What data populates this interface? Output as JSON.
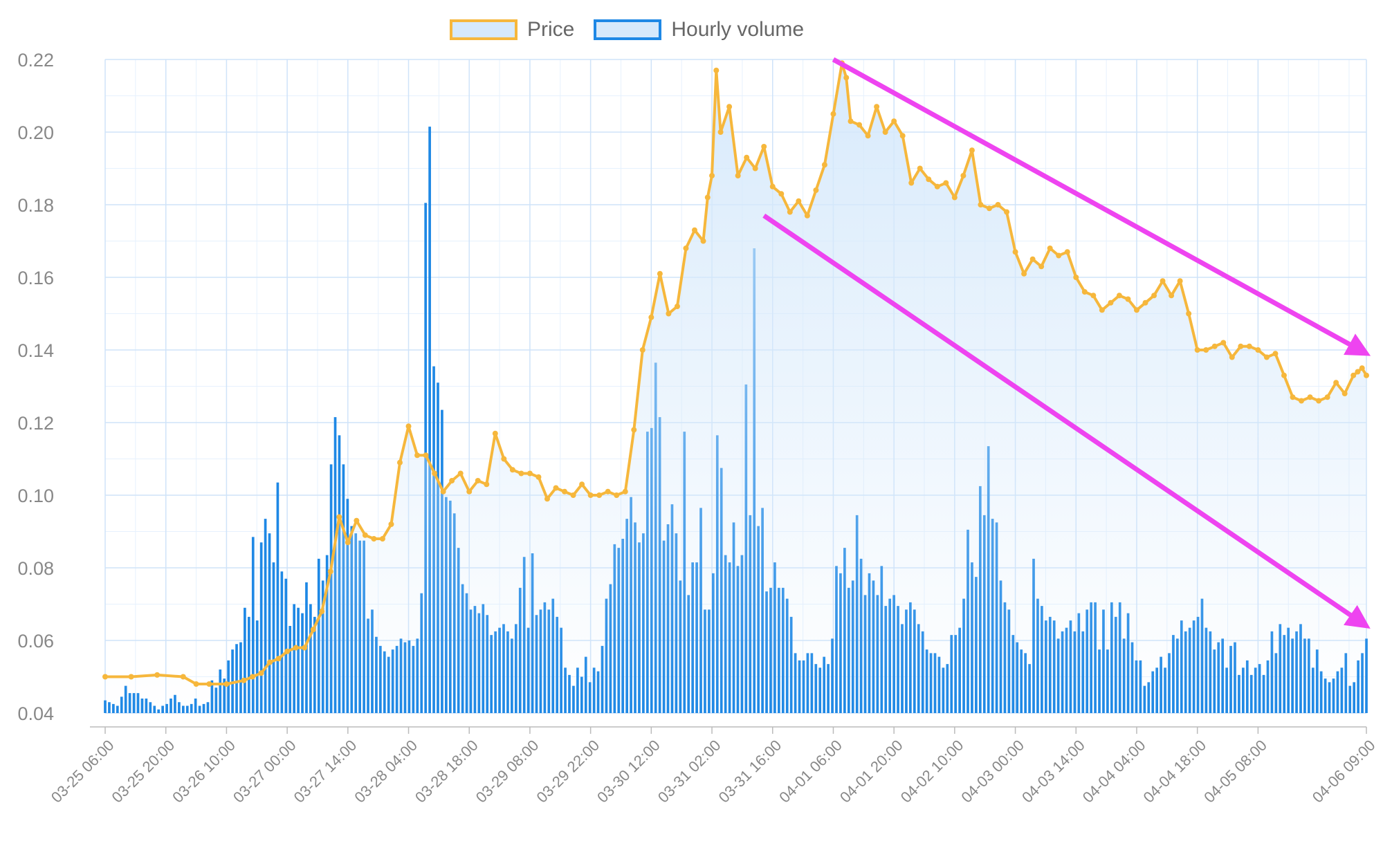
{
  "chart_data": {
    "type": "line",
    "legend": [
      {
        "label": "Price",
        "color": "#f6b73c",
        "fill": "#d6e9fb"
      },
      {
        "label": "Hourly volume",
        "color": "#1e88e5",
        "fill": "#d6e9fb"
      }
    ],
    "legend_position": "top",
    "grid": true,
    "ylim": [
      0.04,
      0.22
    ],
    "y_ticks": [
      "0.22",
      "0.20",
      "0.18",
      "0.16",
      "0.14",
      "0.12",
      "0.10",
      "0.08",
      "0.06",
      "0.04"
    ],
    "x_ticks": [
      "03-25 06:00",
      "03-25 20:00",
      "03-26 10:00",
      "03-27 00:00",
      "03-27 14:00",
      "03-28 04:00",
      "03-28 18:00",
      "03-29 08:00",
      "03-29 22:00",
      "03-30 12:00",
      "03-31 02:00",
      "03-31 16:00",
      "04-01 06:00",
      "04-01 20:00",
      "04-02 10:00",
      "04-03 00:00",
      "04-03 14:00",
      "04-04 04:00",
      "04-04 18:00",
      "04-05 08:00",
      "04-06 09:00"
    ],
    "series": [
      {
        "name": "Price",
        "type": "line",
        "color": "#f6b73c",
        "points": [
          [
            "03-25 06:00",
            0.05
          ],
          [
            "03-25 12:00",
            0.05
          ],
          [
            "03-25 18:00",
            0.0505
          ],
          [
            "03-26 00:00",
            0.05
          ],
          [
            "03-26 03:00",
            0.048
          ],
          [
            "03-26 06:00",
            0.048
          ],
          [
            "03-26 10:00",
            0.048
          ],
          [
            "03-26 14:00",
            0.049
          ],
          [
            "03-26 16:00",
            0.05
          ],
          [
            "03-26 18:00",
            0.051
          ],
          [
            "03-26 20:00",
            0.054
          ],
          [
            "03-26 22:00",
            0.055
          ],
          [
            "03-27 00:00",
            0.057
          ],
          [
            "03-27 02:00",
            0.058
          ],
          [
            "03-27 04:00",
            0.058
          ],
          [
            "03-27 06:00",
            0.063
          ],
          [
            "03-27 08:00",
            0.068
          ],
          [
            "03-27 10:00",
            0.079
          ],
          [
            "03-27 12:00",
            0.094
          ],
          [
            "03-27 14:00",
            0.087
          ],
          [
            "03-27 16:00",
            0.093
          ],
          [
            "03-27 18:00",
            0.089
          ],
          [
            "03-27 20:00",
            0.088
          ],
          [
            "03-27 22:00",
            0.088
          ],
          [
            "03-28 00:00",
            0.092
          ],
          [
            "03-28 02:00",
            0.109
          ],
          [
            "03-28 04:00",
            0.119
          ],
          [
            "03-28 06:00",
            0.111
          ],
          [
            "03-28 08:00",
            0.111
          ],
          [
            "03-28 10:00",
            0.106
          ],
          [
            "03-28 12:00",
            0.101
          ],
          [
            "03-28 14:00",
            0.104
          ],
          [
            "03-28 16:00",
            0.106
          ],
          [
            "03-28 18:00",
            0.101
          ],
          [
            "03-28 20:00",
            0.104
          ],
          [
            "03-28 22:00",
            0.103
          ],
          [
            "03-29 00:00",
            0.117
          ],
          [
            "03-29 02:00",
            0.11
          ],
          [
            "03-29 04:00",
            0.107
          ],
          [
            "03-29 06:00",
            0.106
          ],
          [
            "03-29 08:00",
            0.106
          ],
          [
            "03-29 10:00",
            0.105
          ],
          [
            "03-29 12:00",
            0.099
          ],
          [
            "03-29 14:00",
            0.102
          ],
          [
            "03-29 16:00",
            0.101
          ],
          [
            "03-29 18:00",
            0.1
          ],
          [
            "03-29 20:00",
            0.103
          ],
          [
            "03-29 22:00",
            0.1
          ],
          [
            "03-30 00:00",
            0.1
          ],
          [
            "03-30 02:00",
            0.101
          ],
          [
            "03-30 04:00",
            0.1
          ],
          [
            "03-30 06:00",
            0.101
          ],
          [
            "03-30 08:00",
            0.118
          ],
          [
            "03-30 10:00",
            0.14
          ],
          [
            "03-30 12:00",
            0.149
          ],
          [
            "03-30 14:00",
            0.161
          ],
          [
            "03-30 16:00",
            0.15
          ],
          [
            "03-30 18:00",
            0.152
          ],
          [
            "03-30 20:00",
            0.168
          ],
          [
            "03-30 22:00",
            0.173
          ],
          [
            "03-31 00:00",
            0.17
          ],
          [
            "03-31 01:00",
            0.182
          ],
          [
            "03-31 02:00",
            0.188
          ],
          [
            "03-31 03:00",
            0.217
          ],
          [
            "03-31 04:00",
            0.2
          ],
          [
            "03-31 06:00",
            0.207
          ],
          [
            "03-31 08:00",
            0.188
          ],
          [
            "03-31 10:00",
            0.193
          ],
          [
            "03-31 12:00",
            0.19
          ],
          [
            "03-31 14:00",
            0.196
          ],
          [
            "03-31 16:00",
            0.185
          ],
          [
            "03-31 18:00",
            0.183
          ],
          [
            "03-31 20:00",
            0.178
          ],
          [
            "03-31 22:00",
            0.181
          ],
          [
            "04-01 00:00",
            0.177
          ],
          [
            "04-01 02:00",
            0.184
          ],
          [
            "04-01 04:00",
            0.191
          ],
          [
            "04-01 06:00",
            0.205
          ],
          [
            "04-01 08:00",
            0.219
          ],
          [
            "04-01 09:00",
            0.215
          ],
          [
            "04-01 10:00",
            0.203
          ],
          [
            "04-01 12:00",
            0.202
          ],
          [
            "04-01 14:00",
            0.199
          ],
          [
            "04-01 16:00",
            0.207
          ],
          [
            "04-01 18:00",
            0.2
          ],
          [
            "04-01 20:00",
            0.203
          ],
          [
            "04-01 22:00",
            0.199
          ],
          [
            "04-02 00:00",
            0.186
          ],
          [
            "04-02 02:00",
            0.19
          ],
          [
            "04-02 04:00",
            0.187
          ],
          [
            "04-02 06:00",
            0.185
          ],
          [
            "04-02 08:00",
            0.186
          ],
          [
            "04-02 10:00",
            0.182
          ],
          [
            "04-02 12:00",
            0.188
          ],
          [
            "04-02 14:00",
            0.195
          ],
          [
            "04-02 16:00",
            0.18
          ],
          [
            "04-02 18:00",
            0.179
          ],
          [
            "04-02 20:00",
            0.18
          ],
          [
            "04-02 22:00",
            0.178
          ],
          [
            "04-03 00:00",
            0.167
          ],
          [
            "04-03 02:00",
            0.161
          ],
          [
            "04-03 04:00",
            0.165
          ],
          [
            "04-03 06:00",
            0.163
          ],
          [
            "04-03 08:00",
            0.168
          ],
          [
            "04-03 10:00",
            0.166
          ],
          [
            "04-03 12:00",
            0.167
          ],
          [
            "04-03 14:00",
            0.16
          ],
          [
            "04-03 16:00",
            0.156
          ],
          [
            "04-03 18:00",
            0.155
          ],
          [
            "04-03 20:00",
            0.151
          ],
          [
            "04-03 22:00",
            0.153
          ],
          [
            "04-04 00:00",
            0.155
          ],
          [
            "04-04 02:00",
            0.154
          ],
          [
            "04-04 04:00",
            0.151
          ],
          [
            "04-04 06:00",
            0.153
          ],
          [
            "04-04 08:00",
            0.155
          ],
          [
            "04-04 10:00",
            0.159
          ],
          [
            "04-04 12:00",
            0.155
          ],
          [
            "04-04 14:00",
            0.159
          ],
          [
            "04-04 16:00",
            0.15
          ],
          [
            "04-04 18:00",
            0.14
          ],
          [
            "04-04 20:00",
            0.14
          ],
          [
            "04-04 22:00",
            0.141
          ],
          [
            "04-05 00:00",
            0.142
          ],
          [
            "04-05 02:00",
            0.138
          ],
          [
            "04-05 04:00",
            0.141
          ],
          [
            "04-05 06:00",
            0.141
          ],
          [
            "04-05 08:00",
            0.14
          ],
          [
            "04-05 10:00",
            0.138
          ],
          [
            "04-05 12:00",
            0.139
          ],
          [
            "04-05 14:00",
            0.133
          ],
          [
            "04-05 16:00",
            0.127
          ],
          [
            "04-05 18:00",
            0.126
          ],
          [
            "04-05 20:00",
            0.127
          ],
          [
            "04-05 22:00",
            0.126
          ],
          [
            "04-06 00:00",
            0.127
          ],
          [
            "04-06 02:00",
            0.131
          ],
          [
            "04-06 04:00",
            0.128
          ],
          [
            "04-06 06:00",
            0.133
          ],
          [
            "04-06 07:00",
            0.134
          ],
          [
            "04-06 08:00",
            0.135
          ],
          [
            "04-06 09:00",
            0.133
          ]
        ]
      },
      {
        "name": "Hourly volume",
        "type": "bar",
        "color": "#1e88e5",
        "x_start": "03-25 06:00",
        "x_end": "04-06 09:00",
        "values": [
          0.0435,
          0.043,
          0.0425,
          0.042,
          0.0445,
          0.0475,
          0.0455,
          0.0455,
          0.0455,
          0.044,
          0.044,
          0.043,
          0.042,
          0.041,
          0.042,
          0.0425,
          0.044,
          0.045,
          0.043,
          0.042,
          0.042,
          0.0425,
          0.044,
          0.042,
          0.0425,
          0.043,
          0.049,
          0.047,
          0.052,
          0.0495,
          0.0545,
          0.0575,
          0.059,
          0.0595,
          0.069,
          0.0665,
          0.0885,
          0.0655,
          0.087,
          0.0935,
          0.0895,
          0.0815,
          0.1035,
          0.079,
          0.077,
          0.064,
          0.07,
          0.069,
          0.0675,
          0.076,
          0.07,
          0.0665,
          0.0825,
          0.0765,
          0.0835,
          0.1085,
          0.1215,
          0.1165,
          0.1085,
          0.099,
          0.0915,
          0.0895,
          0.0875,
          0.0875,
          0.066,
          0.0685,
          0.061,
          0.0585,
          0.057,
          0.0555,
          0.0575,
          0.0585,
          0.0605,
          0.0595,
          0.06,
          0.0585,
          0.0605,
          0.073,
          0.1805,
          0.2015,
          0.1355,
          0.131,
          0.1235,
          0.0995,
          0.0985,
          0.095,
          0.0855,
          0.0755,
          0.073,
          0.0685,
          0.0695,
          0.0675,
          0.07,
          0.067,
          0.0615,
          0.0625,
          0.0635,
          0.0645,
          0.0625,
          0.0605,
          0.0645,
          0.0745,
          0.083,
          0.0635,
          0.084,
          0.067,
          0.0685,
          0.0705,
          0.0685,
          0.0715,
          0.0665,
          0.0635,
          0.0525,
          0.0505,
          0.0475,
          0.0525,
          0.05,
          0.0555,
          0.0485,
          0.0525,
          0.0515,
          0.0585,
          0.0715,
          0.0755,
          0.0865,
          0.0855,
          0.088,
          0.0935,
          0.0995,
          0.0925,
          0.087,
          0.0895,
          0.1175,
          0.1185,
          0.1365,
          0.1215,
          0.0875,
          0.092,
          0.0975,
          0.0895,
          0.0765,
          0.1175,
          0.0725,
          0.0815,
          0.0815,
          0.0965,
          0.0685,
          0.0685,
          0.0785,
          0.1165,
          0.1075,
          0.0835,
          0.0815,
          0.0925,
          0.0805,
          0.0835,
          0.1305,
          0.0945,
          0.168,
          0.0915,
          0.0965,
          0.0735,
          0.0745,
          0.0815,
          0.0745,
          0.0745,
          0.0715,
          0.0665,
          0.0565,
          0.0545,
          0.0545,
          0.0565,
          0.0565,
          0.0535,
          0.0525,
          0.0555,
          0.0535,
          0.0605,
          0.0805,
          0.0785,
          0.0855,
          0.0745,
          0.0765,
          0.0945,
          0.0825,
          0.0725,
          0.0785,
          0.0765,
          0.0725,
          0.0805,
          0.0695,
          0.0715,
          0.0725,
          0.0695,
          0.0645,
          0.0685,
          0.0705,
          0.0685,
          0.0645,
          0.0625,
          0.0575,
          0.0565,
          0.0565,
          0.0555,
          0.0525,
          0.0535,
          0.0615,
          0.0615,
          0.0635,
          0.0715,
          0.0905,
          0.0815,
          0.0775,
          0.1025,
          0.0945,
          0.1135,
          0.0935,
          0.0925,
          0.0765,
          0.0705,
          0.0685,
          0.0615,
          0.0595,
          0.0575,
          0.0565,
          0.0535,
          0.0825,
          0.0715,
          0.0695,
          0.0655,
          0.0665,
          0.0655,
          0.0605,
          0.0625,
          0.0635,
          0.0655,
          0.0625,
          0.0675,
          0.0625,
          0.0685,
          0.0705,
          0.0705,
          0.0575,
          0.0685,
          0.0575,
          0.0705,
          0.0665,
          0.0705,
          0.0605,
          0.0675,
          0.0595,
          0.0545,
          0.0545,
          0.0475,
          0.0485,
          0.0515,
          0.0525,
          0.0555,
          0.0525,
          0.0565,
          0.0615,
          0.0605,
          0.0655,
          0.0625,
          0.0635,
          0.0655,
          0.0665,
          0.0715,
          0.0635,
          0.0625,
          0.0575,
          0.0595,
          0.0605,
          0.0525,
          0.0585,
          0.0595,
          0.0505,
          0.0525,
          0.0545,
          0.0505,
          0.0525,
          0.0535,
          0.0505,
          0.0545,
          0.0625,
          0.0565,
          0.0645,
          0.0615,
          0.0635,
          0.0605,
          0.0625,
          0.0645,
          0.0605,
          0.0605,
          0.0525,
          0.0575,
          0.0515,
          0.0495,
          0.0485,
          0.0495,
          0.0515,
          0.0525,
          0.0565,
          0.0475,
          0.0485,
          0.0545,
          0.0565,
          0.0605
        ]
      }
    ],
    "annotations": [
      {
        "type": "arrow",
        "color": "#ee44f0",
        "from": [
          "04-01 06:00",
          0.22
        ],
        "to": [
          "04-06 09:00",
          0.139
        ]
      },
      {
        "type": "arrow",
        "color": "#ee44f0",
        "from": [
          "03-31 14:00",
          0.177
        ],
        "to": [
          "04-06 09:00",
          0.064
        ]
      }
    ]
  }
}
